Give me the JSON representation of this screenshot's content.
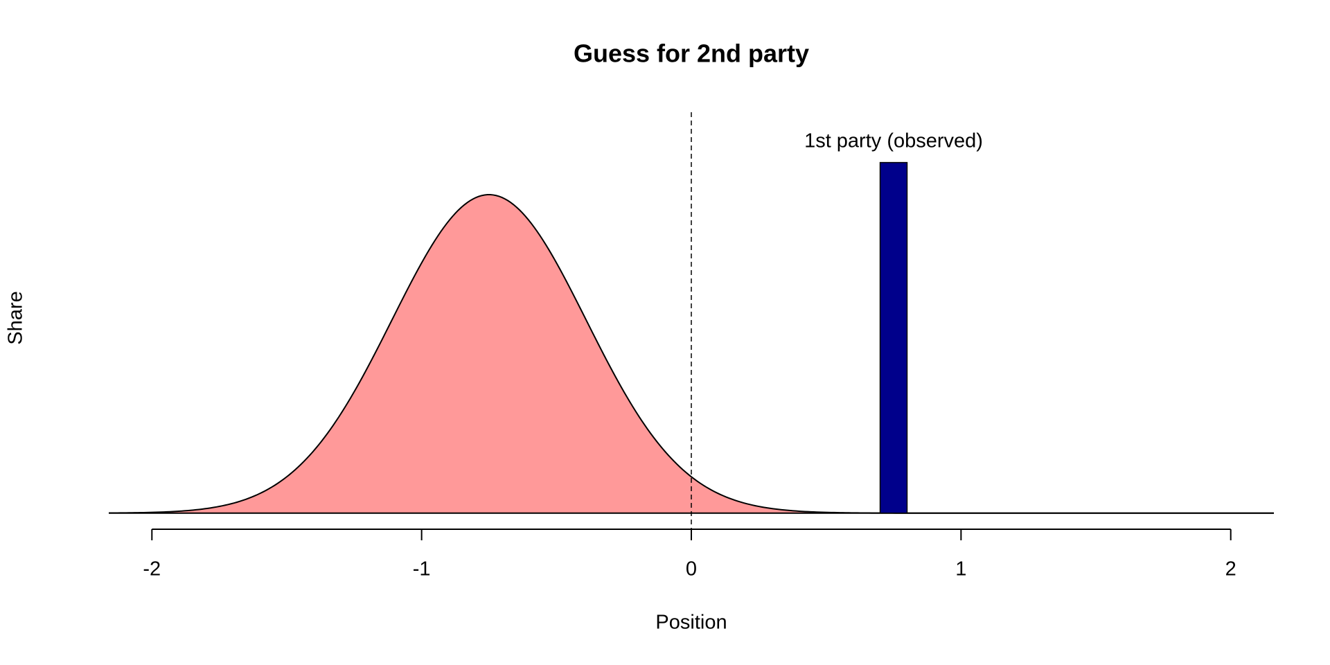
{
  "chart_data": {
    "type": "density",
    "title": "Guess for 2nd party",
    "x_label": "Position",
    "y_label": "Share",
    "xlim": [
      -2.16,
      2.16
    ],
    "ylim": [
      -0.056,
      1.395
    ],
    "xticks": [
      -2,
      -1,
      0,
      1,
      2
    ],
    "density": {
      "mean": -0.75,
      "sd": 0.36,
      "color": "#ff9999"
    },
    "bar": {
      "label": "1st party (observed)",
      "x": [
        0.7,
        0.8
      ],
      "value": 1.22,
      "color": "#00008b"
    },
    "reference_line": 0
  }
}
